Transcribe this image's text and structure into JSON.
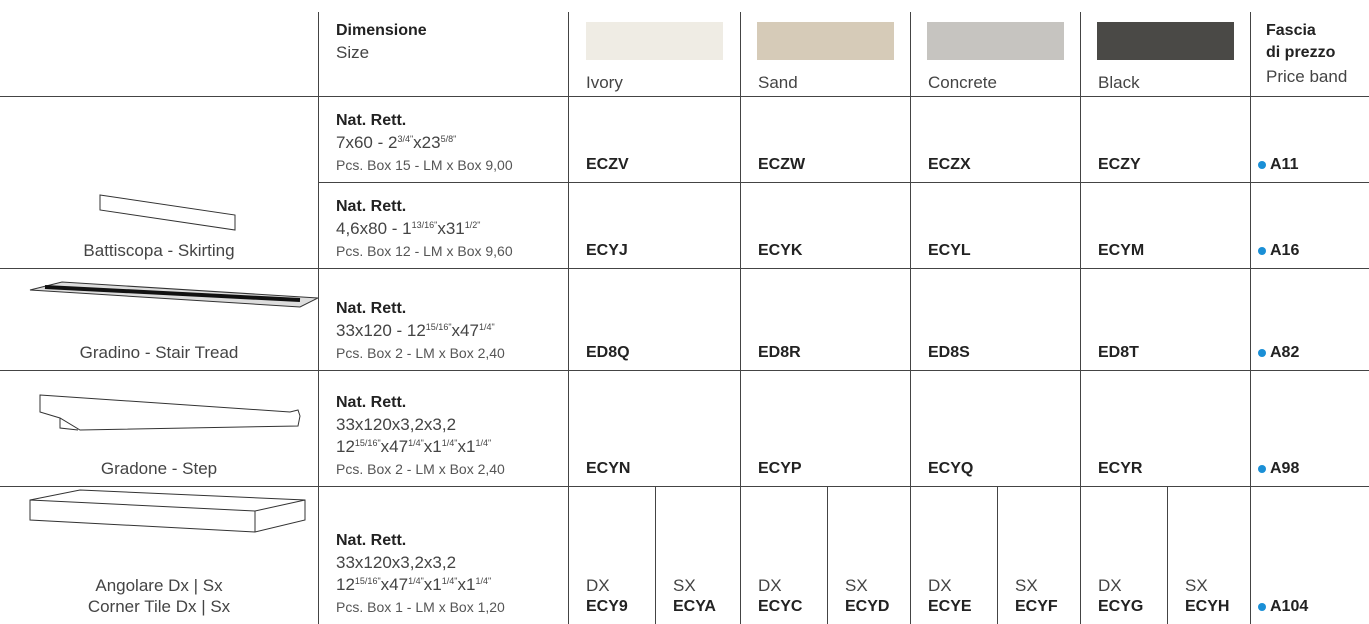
{
  "header": {
    "dimension_title": "Dimensione",
    "dimension_subtitle": "Size",
    "colors": [
      "Ivory",
      "Sand",
      "Concrete",
      "Black"
    ],
    "price_title": [
      "Fascia",
      "di prezzo"
    ],
    "price_subtitle": "Price band"
  },
  "products": [
    {
      "label": [
        "Battiscopa - Skirting"
      ]
    },
    {
      "label": [
        "Gradino - Stair Tread"
      ]
    },
    {
      "label": [
        "Gradone - Step"
      ]
    },
    {
      "label": [
        "Angolare Dx | Sx",
        "Corner Tile Dx | Sx"
      ]
    }
  ],
  "rows": [
    {
      "finish": "Nat. Rett.",
      "size": [
        [
          "7x60 - 2",
          "3/4\"",
          "x23",
          "5/8\""
        ]
      ],
      "packing": "Pcs. Box 15 - LM x Box 9,00",
      "codes": [
        "ECZV",
        "ECZW",
        "ECZX",
        "ECZY"
      ],
      "price_band": "A11"
    },
    {
      "finish": "Nat. Rett.",
      "size": [
        [
          "4,6x80 - 1",
          "13/16\"",
          "x31",
          "1/2\""
        ]
      ],
      "packing": "Pcs. Box 12 - LM x Box 9,60",
      "codes": [
        "ECYJ",
        "ECYK",
        "ECYL",
        "ECYM"
      ],
      "price_band": "A16"
    },
    {
      "finish": "Nat. Rett.",
      "size": [
        [
          "33x120 - 12",
          "15/16\"",
          "x47",
          "1/4\""
        ]
      ],
      "packing": "Pcs. Box 2 - LM x Box 2,40",
      "codes": [
        "ED8Q",
        "ED8R",
        "ED8S",
        "ED8T"
      ],
      "price_band": "A82"
    },
    {
      "finish": "Nat. Rett.",
      "size": [
        [
          "33x120x3,2x3,2"
        ],
        [
          "12",
          "15/16\"",
          "x47",
          "1/4\"",
          "x1",
          "1/4\"",
          "x1",
          "1/4\""
        ]
      ],
      "packing": "Pcs. Box 2 - LM x Box 2,40",
      "codes": [
        "ECYN",
        "ECYP",
        "ECYQ",
        "ECYR"
      ],
      "price_band": "A98"
    },
    {
      "finish": "Nat. Rett.",
      "size": [
        [
          "33x120x3,2x3,2"
        ],
        [
          "12",
          "15/16\"",
          "x47",
          "1/4\"",
          "x1",
          "1/4\"",
          "x1",
          "1/4\""
        ]
      ],
      "packing": "Pcs. Box 1 - LM x Box 1,20",
      "codes": [
        [
          [
            "DX",
            "ECY9"
          ],
          [
            "SX",
            "ECYA"
          ]
        ],
        [
          [
            "DX",
            "ECYC"
          ],
          [
            "SX",
            "ECYD"
          ]
        ],
        [
          [
            "DX",
            "ECYE"
          ],
          [
            "SX",
            "ECYF"
          ]
        ],
        [
          [
            "DX",
            "ECYG"
          ],
          [
            "SX",
            "ECYH"
          ]
        ]
      ],
      "price_band": "A104"
    }
  ]
}
